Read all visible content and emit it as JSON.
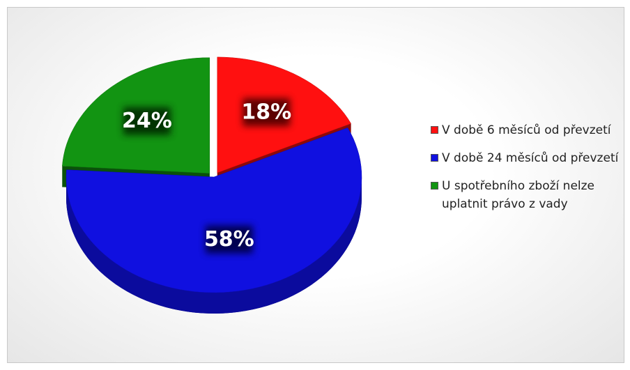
{
  "chart_data": {
    "type": "pie",
    "categories": [
      "V době 6 měsíců od převzetí",
      "V době 24 měsíců od převzetí",
      "U spotřebního zboží nelze uplatnit právo z vady"
    ],
    "values": [
      18,
      58,
      24
    ],
    "value_labels": [
      "18%",
      "58%",
      "24%"
    ],
    "colors": [
      "#ff1010",
      "#1010e0",
      "#129412"
    ],
    "legend": "right"
  }
}
